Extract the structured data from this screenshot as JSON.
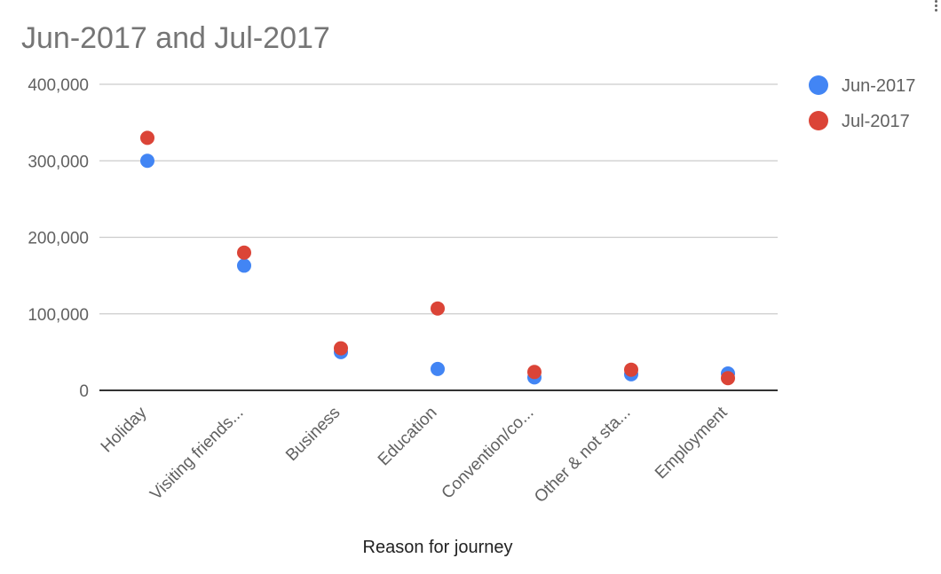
{
  "chart_data": {
    "type": "scatter",
    "title": "Jun-2017 and Jul-2017",
    "xlabel": "Reason for journey",
    "ylabel": "",
    "categories": [
      "Holiday",
      "Visiting friends...",
      "Business",
      "Education",
      "Convention/co...",
      "Other & not sta...",
      "Employment"
    ],
    "ylim": [
      0,
      400000
    ],
    "yticks": [
      0,
      100000,
      200000,
      300000,
      400000
    ],
    "ytick_labels": [
      "0",
      "100,000",
      "200,000",
      "300,000",
      "400,000"
    ],
    "grid": true,
    "legend_position": "right",
    "series": [
      {
        "name": "Jun-2017",
        "color": "#4285f4",
        "values": [
          300000,
          163000,
          50000,
          28000,
          17000,
          21000,
          22000
        ]
      },
      {
        "name": "Jul-2017",
        "color": "#db4437",
        "values": [
          330000,
          180000,
          55000,
          107000,
          24000,
          27000,
          16000
        ]
      }
    ]
  },
  "menu": {
    "icon": "more-vert-icon"
  }
}
